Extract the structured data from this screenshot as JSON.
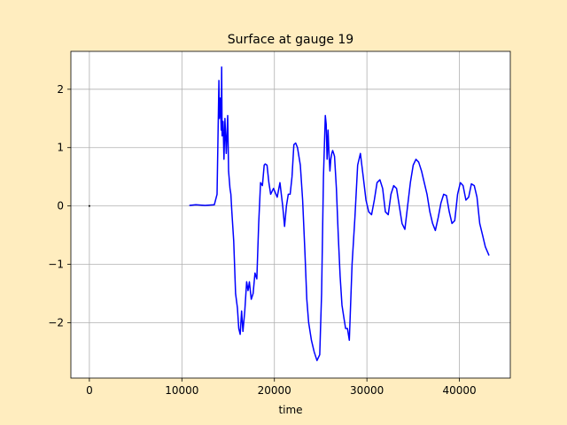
{
  "chart_data": {
    "type": "line",
    "title": "Surface at gauge 19",
    "xlabel": "time",
    "ylabel": "",
    "xlim": [
      -2000,
      45500
    ],
    "ylim": [
      -2.95,
      2.65
    ],
    "grid": true,
    "colors": {
      "figure_background": "#ffedbf",
      "axes_background": "#ffffff",
      "grid": "#b0b0b0",
      "series_line": "#0000ff",
      "marker": "#000000"
    },
    "x_ticks": [
      0,
      10000,
      20000,
      30000,
      40000
    ],
    "x_tick_labels": [
      "0",
      "10000",
      "20000",
      "30000",
      "40000"
    ],
    "y_ticks": [
      -2,
      -1,
      0,
      1,
      2
    ],
    "y_tick_labels": [
      "−2",
      "−1",
      "0",
      "1",
      "2"
    ],
    "series": [
      {
        "color": "#0000ff",
        "x": [
          10800,
          11500,
          12500,
          13500,
          13800,
          14000,
          14050,
          14150,
          14250,
          14300,
          14350,
          14450,
          14550,
          14650,
          14800,
          14950,
          15050,
          15200,
          15300,
          15400,
          15600,
          15800,
          16000,
          16150,
          16300,
          16450,
          16600,
          16800,
          17000,
          17150,
          17300,
          17500,
          17700,
          17900,
          18100,
          18300,
          18500,
          18700,
          18900,
          19000,
          19200,
          19400,
          19600,
          19900,
          20300,
          20600,
          20900,
          21100,
          21300,
          21500,
          21700,
          21900,
          22100,
          22300,
          22500,
          22800,
          23050,
          23300,
          23500,
          23700,
          24000,
          24300,
          24600,
          24900,
          25100,
          25300,
          25500,
          25600,
          25700,
          25800,
          25900,
          26000,
          26100,
          26200,
          26300,
          26400,
          26500,
          26700,
          26900,
          27100,
          27300,
          27500,
          27700,
          27900,
          28100,
          28400,
          28700,
          29000,
          29300,
          29600,
          29900,
          30200,
          30500,
          30800,
          31100,
          31400,
          31700,
          32000,
          32300,
          32600,
          32900,
          33200,
          33500,
          33800,
          34100,
          34400,
          34700,
          35000,
          35300,
          35600,
          35900,
          36200,
          36500,
          36800,
          37100,
          37400,
          37700,
          38000,
          38300,
          38600,
          38900,
          39200,
          39500,
          39800,
          40100,
          40400,
          40700,
          41000,
          41300,
          41600,
          41900,
          42200,
          42500,
          42800,
          43200
        ],
        "y": [
          0.01,
          0.02,
          0.01,
          0.02,
          0.2,
          2.15,
          1.5,
          1.85,
          1.3,
          2.38,
          1.2,
          1.45,
          0.8,
          1.5,
          0.9,
          1.55,
          0.6,
          0.3,
          0.2,
          -0.1,
          -0.6,
          -1.5,
          -1.75,
          -2.1,
          -2.2,
          -1.8,
          -2.15,
          -1.8,
          -1.3,
          -1.45,
          -1.3,
          -1.6,
          -1.5,
          -1.15,
          -1.25,
          -0.3,
          0.4,
          0.35,
          0.7,
          0.72,
          0.7,
          0.4,
          0.2,
          0.3,
          0.15,
          0.4,
          0.0,
          -0.35,
          0.0,
          0.2,
          0.2,
          0.5,
          1.05,
          1.08,
          1.0,
          0.7,
          0.1,
          -0.8,
          -1.6,
          -2.0,
          -2.3,
          -2.5,
          -2.65,
          -2.55,
          -1.5,
          0.5,
          1.55,
          1.4,
          0.8,
          1.3,
          0.9,
          0.6,
          0.8,
          0.9,
          0.95,
          0.9,
          0.85,
          0.3,
          -0.5,
          -1.2,
          -1.7,
          -1.9,
          -2.1,
          -2.1,
          -2.3,
          -1.0,
          -0.2,
          0.7,
          0.9,
          0.5,
          0.1,
          -0.1,
          -0.15,
          0.1,
          0.4,
          0.45,
          0.3,
          -0.1,
          -0.15,
          0.2,
          0.35,
          0.3,
          0.0,
          -0.3,
          -0.4,
          0.0,
          0.4,
          0.7,
          0.8,
          0.75,
          0.6,
          0.4,
          0.2,
          -0.1,
          -0.3,
          -0.42,
          -0.2,
          0.05,
          0.2,
          0.18,
          -0.1,
          -0.3,
          -0.25,
          0.2,
          0.4,
          0.35,
          0.1,
          0.15,
          0.38,
          0.35,
          0.15,
          -0.3,
          -0.5,
          -0.7,
          -0.85
        ]
      }
    ],
    "markers": [
      {
        "x": 0,
        "y": 0,
        "color": "#000000"
      }
    ]
  }
}
